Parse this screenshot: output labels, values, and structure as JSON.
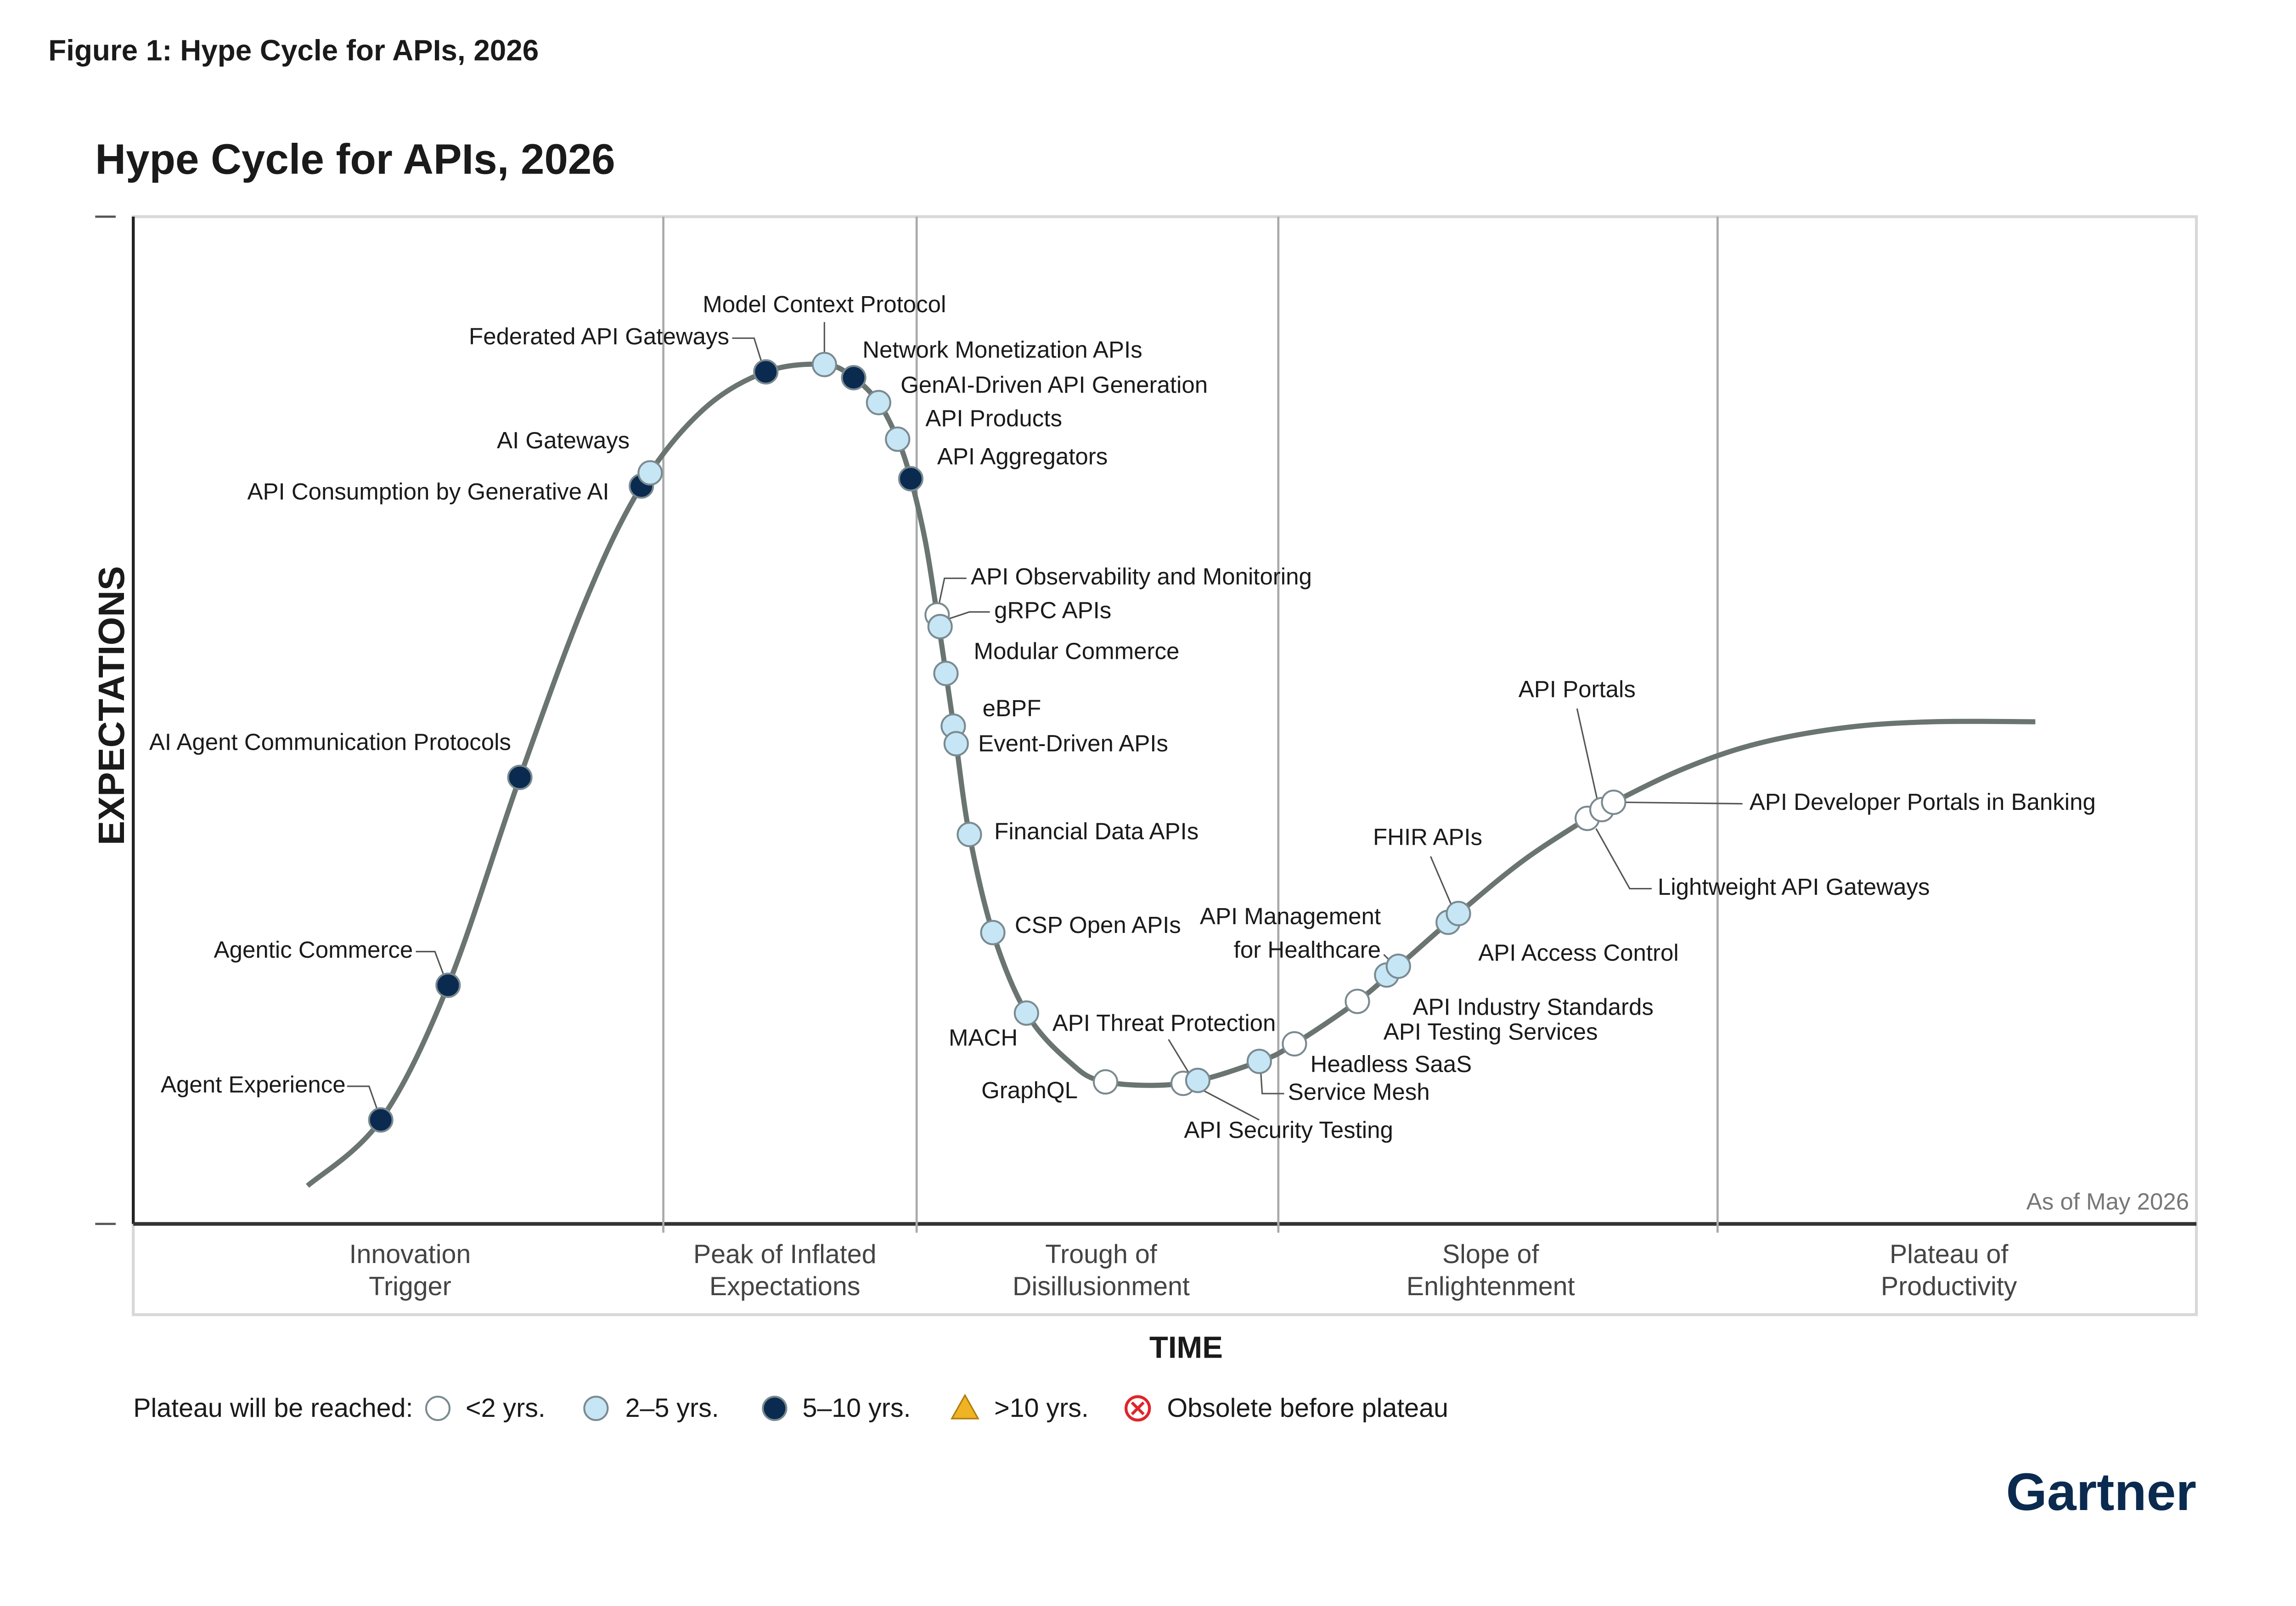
{
  "caption": "Figure 1: Hype Cycle for APIs, 2026",
  "title": "Hype Cycle for APIs, 2026",
  "y_axis_label": "EXPECTATIONS",
  "x_axis_label": "TIME",
  "as_of": "As of May 2026",
  "phases": [
    [
      "Innovation",
      "Trigger"
    ],
    [
      "Peak of Inflated",
      "Expectations"
    ],
    [
      "Trough of",
      "Disillusionment"
    ],
    [
      "Slope of",
      "Enlightenment"
    ],
    [
      "Plateau of",
      "Productivity"
    ]
  ],
  "legend": {
    "title": "Plateau will be reached:",
    "items": [
      {
        "label": "<2 yrs.",
        "color": "#ffffff"
      },
      {
        "label": "2–5 yrs.",
        "color": "#c6e6f5"
      },
      {
        "label": "5–10 yrs.",
        "color": "#0b2a4f"
      },
      {
        "label": ">10 yrs.",
        "color": "#f0b323"
      },
      {
        "label": "Obsolete before plateau",
        "color": "#e0242b"
      }
    ]
  },
  "nodes": [
    {
      "label": "Agent Experience",
      "color": "#0b2a4f"
    },
    {
      "label": "Agentic Commerce",
      "color": "#0b2a4f"
    },
    {
      "label": "AI Agent Communication Protocols",
      "color": "#0b2a4f"
    },
    {
      "label": "API Consumption by Generative AI",
      "color": "#0b2a4f"
    },
    {
      "label": "AI Gateways",
      "color": "#c6e6f5"
    },
    {
      "label": "Federated API Gateways",
      "color": "#0b2a4f"
    },
    {
      "label": "Model Context Protocol",
      "color": "#c6e6f5"
    },
    {
      "label": "Network Monetization APIs",
      "color": "#0b2a4f"
    },
    {
      "label": "GenAI-Driven API Generation",
      "color": "#c6e6f5"
    },
    {
      "label": "API Products",
      "color": "#c6e6f5"
    },
    {
      "label": "API Aggregators",
      "color": "#0b2a4f"
    },
    {
      "label": "API Observability and Monitoring",
      "color": "#ffffff"
    },
    {
      "label": "gRPC APIs",
      "color": "#c6e6f5"
    },
    {
      "label": "Modular Commerce",
      "color": "#c6e6f5"
    },
    {
      "label": "eBPF",
      "color": "#c6e6f5"
    },
    {
      "label": "Event-Driven APIs",
      "color": "#c6e6f5"
    },
    {
      "label": "Financial Data APIs",
      "color": "#c6e6f5"
    },
    {
      "label": "CSP Open APIs",
      "color": "#c6e6f5"
    },
    {
      "label": "MACH",
      "color": "#c6e6f5"
    },
    {
      "label": "GraphQL",
      "color": "#ffffff"
    },
    {
      "label": "API Threat Protection",
      "color": "#ffffff"
    },
    {
      "label": "API Security Testing",
      "color": "#c6e6f5"
    },
    {
      "label": "Service Mesh",
      "color": "#c6e6f5"
    },
    {
      "label": "Headless SaaS",
      "color": "#ffffff"
    },
    {
      "label": "API Testing Services",
      "color": "#ffffff"
    },
    {
      "label": "API Industry Standards",
      "color": "#c6e6f5"
    },
    {
      "label": [
        "API Management",
        "for Healthcare"
      ],
      "color": "#c6e6f5"
    },
    {
      "label": "FHIR APIs",
      "color": "#c6e6f5"
    },
    {
      "label": "API Access Control",
      "color": "#c6e6f5"
    },
    {
      "label": "Lightweight API Gateways",
      "color": "#ffffff"
    },
    {
      "label": "API Portals",
      "color": "#ffffff"
    },
    {
      "label": "API Developer Portals in Banking",
      "color": "#ffffff"
    }
  ],
  "logo": "Gartner"
}
